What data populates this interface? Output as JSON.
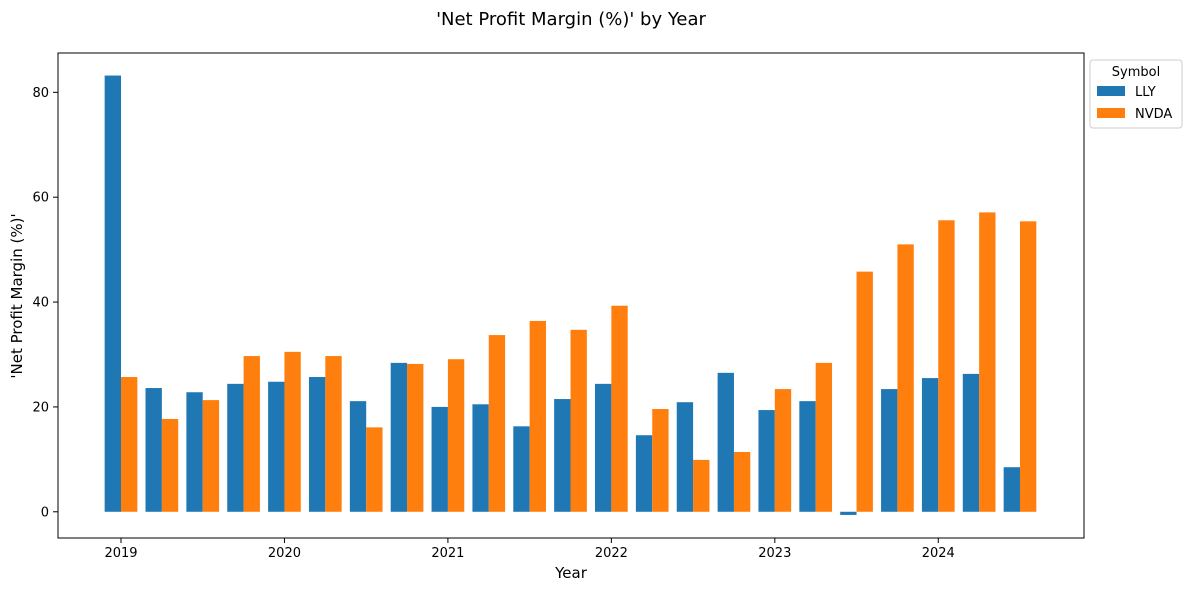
{
  "chart_data": {
    "type": "bar",
    "title": "'Net Profit Margin (%)' by Year",
    "xlabel": "Year",
    "ylabel": "'Net Profit Margin (%)'",
    "ylim": [
      -5,
      87.5
    ],
    "yticks": [
      0,
      20,
      40,
      60,
      80
    ],
    "xticks": [
      "2019",
      "2020",
      "2021",
      "2022",
      "2023",
      "2024"
    ],
    "grid": false,
    "legend": {
      "title": "Symbol",
      "placement": "outside top-right"
    },
    "series": [
      {
        "name": "LLY",
        "color": "#1f77b4",
        "values": [
          83.2,
          23.6,
          22.8,
          24.4,
          24.8,
          25.7,
          21.1,
          28.4,
          20.0,
          20.5,
          16.3,
          21.5,
          24.4,
          14.6,
          20.9,
          26.5,
          19.4,
          21.1,
          -0.6,
          23.4,
          25.5,
          26.3,
          8.5
        ]
      },
      {
        "name": "NVDA",
        "color": "#ff7f0e",
        "values": [
          25.7,
          17.7,
          21.3,
          29.7,
          30.5,
          29.7,
          16.1,
          28.2,
          29.1,
          33.7,
          36.4,
          34.7,
          39.3,
          19.6,
          9.9,
          11.4,
          23.4,
          28.4,
          45.8,
          51.0,
          55.6,
          57.1,
          55.4
        ]
      }
    ]
  }
}
